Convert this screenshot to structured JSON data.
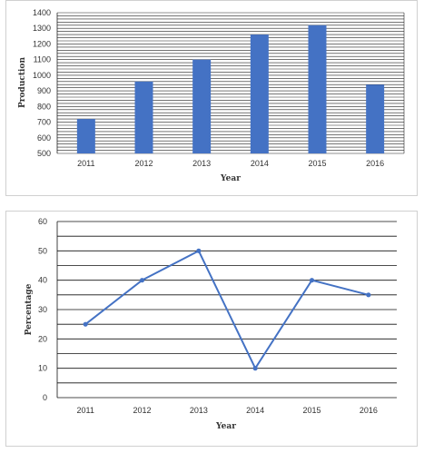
{
  "chart_data": [
    {
      "type": "bar",
      "categories": [
        "2011",
        "2012",
        "2013",
        "2014",
        "2015",
        "2016"
      ],
      "values": [
        720,
        960,
        1100,
        1260,
        1320,
        940
      ],
      "xlabel": "Year",
      "ylabel": "Production",
      "ylim": [
        500,
        1400
      ],
      "yticks": [
        "500",
        "600",
        "700",
        "800",
        "900",
        "1000",
        "1100",
        "1200",
        "1300",
        "1400"
      ],
      "grid": true,
      "bar_color": "#4472c4"
    },
    {
      "type": "line",
      "categories": [
        "2011",
        "2012",
        "2013",
        "2014",
        "2015",
        "2016"
      ],
      "values": [
        25,
        40,
        50,
        10,
        40,
        35
      ],
      "xlabel": "Year",
      "ylabel": "Percentage",
      "ylim": [
        0,
        60
      ],
      "yticks": [
        "0",
        "10",
        "20",
        "30",
        "40",
        "50",
        "60"
      ],
      "grid": true,
      "line_color": "#4472c4"
    }
  ]
}
